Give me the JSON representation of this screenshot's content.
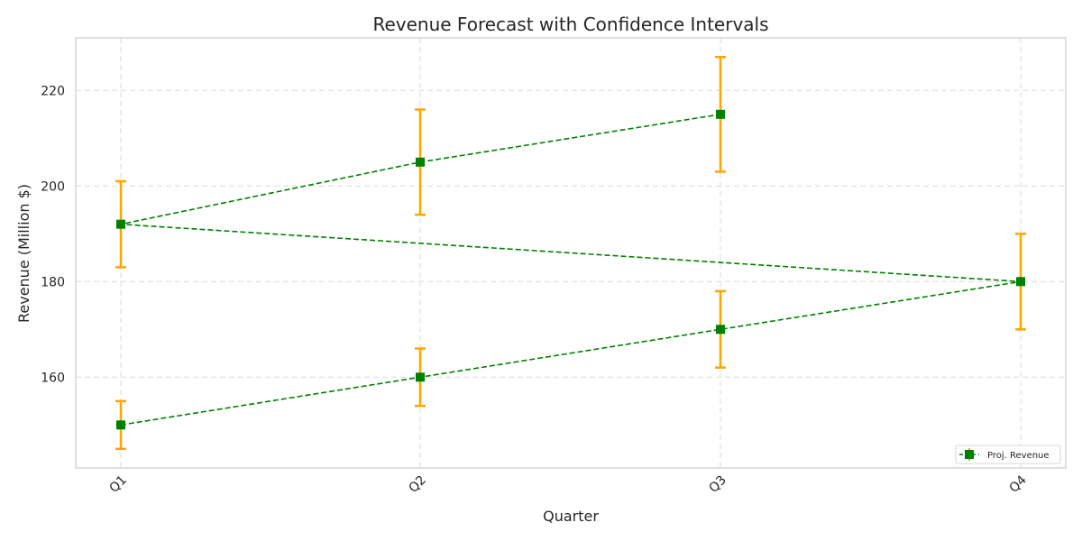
{
  "chart_data": {
    "type": "line",
    "title": "Revenue Forecast with Confidence Intervals",
    "xlabel": "Quarter",
    "ylabel": "Revenue (Million $)",
    "categories": [
      "Q1",
      "Q2",
      "Q3",
      "Q4"
    ],
    "yticks": [
      160,
      180,
      200,
      220
    ],
    "ylim": [
      141,
      231
    ],
    "grid": true,
    "legend_position": "bottom-right",
    "series": [
      {
        "name": "Proj. Revenue",
        "points": [
          {
            "x": "Q1",
            "y": 150,
            "lower": 145,
            "upper": 155
          },
          {
            "x": "Q2",
            "y": 160,
            "lower": 154,
            "upper": 166
          },
          {
            "x": "Q3",
            "y": 170,
            "lower": 162,
            "upper": 178
          },
          {
            "x": "Q4",
            "y": 180,
            "lower": 170,
            "upper": 190
          },
          {
            "x": "Q1",
            "y": 192,
            "lower": 183,
            "upper": 201
          },
          {
            "x": "Q2",
            "y": 205,
            "lower": 194,
            "upper": 216
          },
          {
            "x": "Q3",
            "y": 215,
            "lower": 203,
            "upper": 227
          }
        ]
      }
    ],
    "colors": {
      "line": "#008000",
      "marker": "#008000",
      "errorbar": "#FFA500",
      "grid": "#d9d9d9",
      "axes_edge": "#cccccc",
      "text": "#262626"
    }
  }
}
